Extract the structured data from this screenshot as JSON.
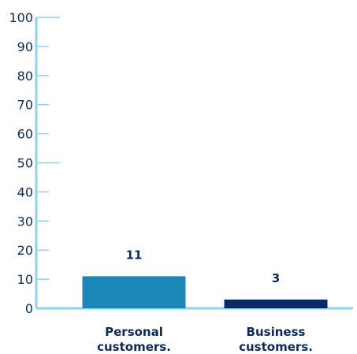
{
  "chart_data": {
    "type": "bar",
    "categories": [
      [
        "Personal",
        "customers."
      ],
      [
        "Business",
        "customers."
      ]
    ],
    "values": [
      11,
      3
    ],
    "data_labels": [
      "11",
      "3"
    ],
    "bar_colors": [
      "#1a87b8",
      "#0a2a66"
    ],
    "ylim": [
      0,
      100
    ],
    "yticks": [
      0,
      10,
      20,
      30,
      40,
      50,
      60,
      70,
      80,
      90,
      100
    ],
    "ytick_labels": [
      "0",
      "10",
      "20",
      "30",
      "40",
      "50",
      "60",
      "70",
      "80",
      "90",
      "100"
    ],
    "major_ticks": [
      0,
      50,
      100
    ],
    "axis_color": "#8fd3ea",
    "text_color": "#0d2a5c",
    "grid": false,
    "title": "",
    "xlabel": "",
    "ylabel": ""
  }
}
